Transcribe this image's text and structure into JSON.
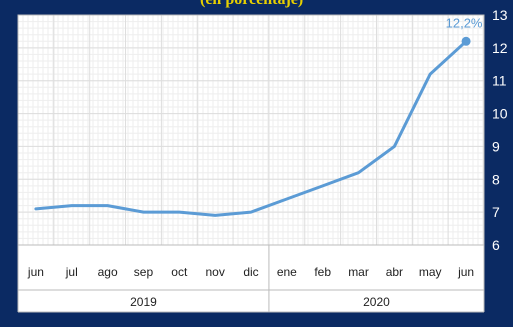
{
  "header_fragment": "(en porcentaje)",
  "colors": {
    "background": "#0b2a63",
    "plot_bg": "#ffffff",
    "grid": "#dddddd",
    "line": "#5b9bd5",
    "label": "#5b9bd5",
    "header_text": "#e8d000"
  },
  "chart_data": {
    "type": "line",
    "title": "",
    "xlabel": "",
    "ylabel": "",
    "categories": [
      "jun",
      "jul",
      "ago",
      "sep",
      "oct",
      "nov",
      "dic",
      "ene",
      "feb",
      "mar",
      "abr",
      "may",
      "jun"
    ],
    "year_groups": [
      {
        "label": "2019",
        "span": 7
      },
      {
        "label": "2020",
        "span": 6
      }
    ],
    "series": [
      {
        "values": [
          7.1,
          7.2,
          7.2,
          7.0,
          7.0,
          6.9,
          7.0,
          7.4,
          7.8,
          8.2,
          9.0,
          11.2,
          12.2
        ]
      }
    ],
    "end_label": "12,2%",
    "ylim": [
      6,
      13
    ],
    "yticks": [
      6,
      7,
      8,
      9,
      10,
      11,
      12,
      13
    ],
    "grid": true
  }
}
